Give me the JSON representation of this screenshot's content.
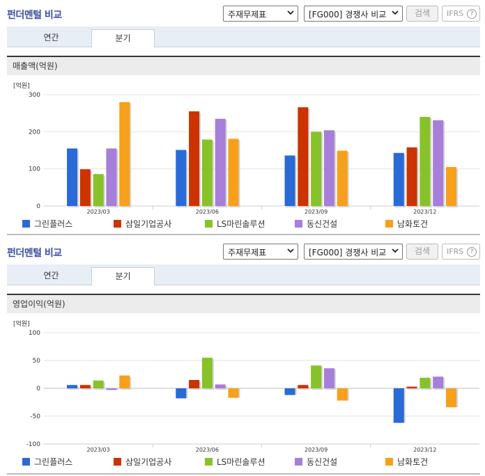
{
  "colors": {
    "series": [
      "#2a6ad6",
      "#cc3300",
      "#88c22a",
      "#a77ed9",
      "#f7a01b"
    ],
    "title": "#3a4fa0"
  },
  "panels": [
    {
      "title": "펀더멘털 비교",
      "statement_select": "주재무제표",
      "compare_select": "[FG000] 경쟁사 비교",
      "search_label": "검색",
      "ifrs_label": "IFRS",
      "help_icon": "?",
      "tab_annual": "연간",
      "tab_quarter": "분기",
      "metric_label": "매출액(억원)"
    },
    {
      "title": "펀더멘털 비교",
      "statement_select": "주재무제표",
      "compare_select": "[FG000] 경쟁사 비교",
      "search_label": "검색",
      "ifrs_label": "IFRS",
      "help_icon": "?",
      "tab_annual": "연간",
      "tab_quarter": "분기",
      "metric_label": "영업이익(억원)"
    }
  ],
  "chart_data": [
    {
      "type": "bar",
      "title": "매출액(억원)",
      "unit_label": "[억원]",
      "categories": [
        "2023/03",
        "2023/06",
        "2023/09",
        "2023/12"
      ],
      "yticks": [
        0,
        100,
        200,
        300
      ],
      "ylim": [
        0,
        300
      ],
      "grid": true,
      "legend": "bottom",
      "series": [
        {
          "name": "그린플러스",
          "values": [
            155,
            151,
            136,
            143
          ]
        },
        {
          "name": "삼일기업공사",
          "values": [
            99,
            255,
            266,
            158
          ]
        },
        {
          "name": "LS마린솔루션",
          "values": [
            86,
            179,
            200,
            240
          ]
        },
        {
          "name": "동신건설",
          "values": [
            155,
            235,
            204,
            231
          ]
        },
        {
          "name": "남화토건",
          "values": [
            280,
            181,
            149,
            105
          ]
        }
      ]
    },
    {
      "type": "bar",
      "title": "영업이익(억원)",
      "unit_label": "[억원]",
      "categories": [
        "2023/03",
        "2023/06",
        "2023/09",
        "2023/12"
      ],
      "yticks": [
        -100,
        -50,
        0,
        50,
        100
      ],
      "ylim": [
        -100,
        100
      ],
      "grid": true,
      "legend": "bottom",
      "series": [
        {
          "name": "그린플러스",
          "values": [
            6,
            -18,
            -12,
            -62
          ]
        },
        {
          "name": "삼일기업공사",
          "values": [
            6,
            15,
            6,
            3
          ]
        },
        {
          "name": "LS마린솔루션",
          "values": [
            14,
            55,
            41,
            19
          ]
        },
        {
          "name": "동신건설",
          "values": [
            -3,
            7,
            36,
            21
          ]
        },
        {
          "name": "남화토건",
          "values": [
            23,
            -17,
            -22,
            -34
          ]
        }
      ]
    }
  ]
}
